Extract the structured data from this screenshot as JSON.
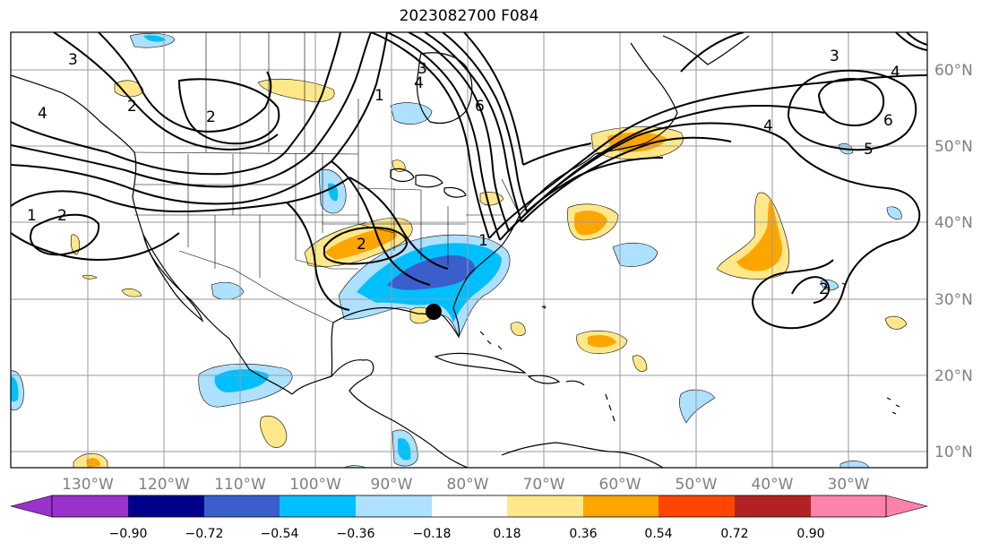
{
  "title": "2023082700 F084",
  "longitude_labels": [
    "130°W",
    "120°W",
    "110°W",
    "100°W",
    "90°W",
    "80°W",
    "70°W",
    "60°W",
    "50°W",
    "40°W",
    "30°W"
  ],
  "latitude_labels": [
    "60°N",
    "50°N",
    "40°N",
    "30°N",
    "20°N",
    "10°N"
  ],
  "contour_labels": [
    "3",
    "4",
    "2",
    "2",
    "1",
    "2",
    "4",
    "3",
    "6",
    "1",
    "2",
    "1",
    "3",
    "4",
    "6",
    "4",
    "5",
    "2"
  ],
  "colorbar": {
    "ticks": [
      "−0.90",
      "−0.72",
      "−0.54",
      "−0.36",
      "−0.18",
      "0.18",
      "0.36",
      "0.54",
      "0.72",
      "0.90"
    ],
    "colors": [
      "#9a32cd",
      "#00008b",
      "#3a5fcd",
      "#00bfff",
      "#aee0ff",
      "#ffffff",
      "#ffe88a",
      "#ffa500",
      "#ff4500",
      "#b22222",
      "#ff82ab"
    ]
  },
  "marker": {
    "type": "storm-center",
    "lon": -84.5,
    "lat": 28.5
  }
}
